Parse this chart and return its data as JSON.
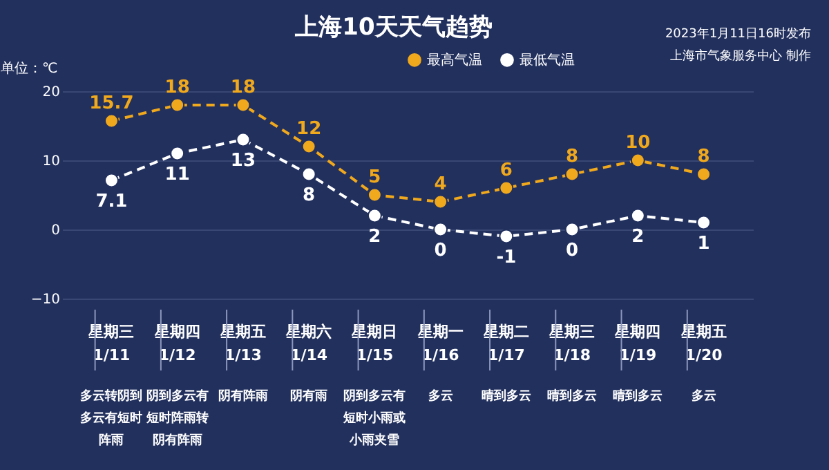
{
  "chart_data": {
    "type": "line",
    "title": "上海10天天气趋势",
    "ylabel": "单位：℃",
    "categories": [
      "星期三 1/11",
      "星期四 1/12",
      "星期五 1/13",
      "星期六 1/14",
      "星期日 1/15",
      "星期一 1/16",
      "星期二 1/17",
      "星期三 1/18",
      "星期四 1/19",
      "星期五 1/20"
    ],
    "series": [
      {
        "name": "最高气温",
        "color": "#f0a81c",
        "values": [
          15.7,
          18,
          18,
          12,
          5,
          4,
          6,
          8,
          10,
          8
        ]
      },
      {
        "name": "最低气温",
        "color": "#ffffff",
        "values": [
          7.1,
          11,
          13,
          8,
          2,
          0,
          -1,
          0,
          2,
          1
        ]
      }
    ],
    "ylim": [
      -10,
      20
    ],
    "yticks": [
      -10,
      0,
      10,
      20
    ],
    "grid": "y",
    "legend": "top right",
    "marker": "circle",
    "line_style": "dashed",
    "data_labels": true,
    "annotations": [
      "2023年1月11日16时发布",
      "上海市气象服务中心 制作",
      "多云转阴到多云有短时阵雨",
      "阴到多云有短时阵雨转阴有阵雨",
      "阴有阵雨",
      "阴有雨",
      "阴到多云有短时小雨或小雨夹雪",
      "多云",
      "晴到多云",
      "晴到多云",
      "晴到多云",
      "多云"
    ]
  }
}
